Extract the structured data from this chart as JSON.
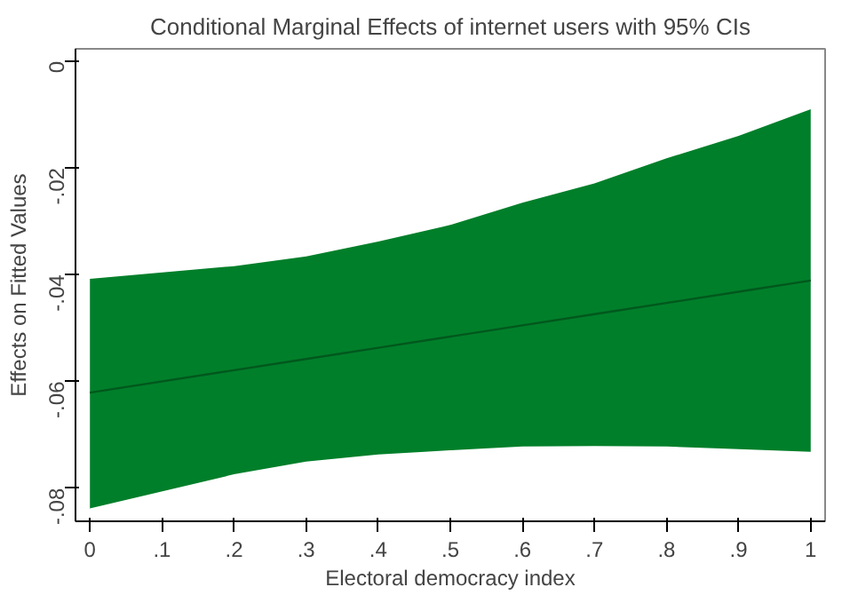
{
  "chart_data": {
    "type": "line",
    "title": "Conditional Marginal Effects of internet users with 95% CIs",
    "xlabel": "Electoral democracy index",
    "ylabel": "Effects on Fitted Values",
    "series": [
      {
        "color": "#00581d",
        "x": [
          0,
          0.2,
          0.3,
          0.4,
          0.5,
          0.6,
          0.7,
          0.8,
          0.9,
          1
        ],
        "values": [
          -0.0621,
          -0.0579,
          -0.0558,
          -0.0537,
          -0.0516,
          -0.0495,
          -0.0474,
          -0.0453,
          -0.0432,
          -0.0411
        ],
        "lower": [
          -0.0838,
          -0.0774,
          -0.075,
          -0.0737,
          -0.0729,
          -0.0722,
          -0.0721,
          -0.0722,
          -0.0727,
          -0.0732
        ],
        "upper": [
          -0.0408,
          -0.0384,
          -0.0366,
          -0.0338,
          -0.0307,
          -0.0265,
          -0.0229,
          -0.0182,
          -0.014,
          -0.009
        ]
      }
    ],
    "xlim": [
      -0.02,
      1.02
    ],
    "ylim": [
      -0.0862,
      0.0023
    ],
    "xticks": [
      0,
      {
        "value": 0.1,
        "label": ".1"
      },
      {
        "value": 0.2,
        "label": ".2"
      },
      {
        "value": 0.3,
        "label": ".3"
      },
      {
        "value": 0.4,
        "label": ".4"
      },
      {
        "value": 0.5,
        "label": ".5"
      },
      {
        "value": 0.6,
        "label": ".6"
      },
      {
        "value": 0.7,
        "label": ".7"
      },
      {
        "value": 0.8,
        "label": ".8"
      },
      {
        "value": 0.9,
        "label": ".9"
      },
      1
    ],
    "yticks": [
      0,
      {
        "value": -0.02,
        "label": "-.02"
      },
      {
        "value": -0.04,
        "label": "-.04"
      },
      {
        "value": -0.06,
        "label": "-.06"
      },
      {
        "value": -0.08,
        "label": "-.08"
      }
    ],
    "marker": "none",
    "line_style": "solid"
  }
}
